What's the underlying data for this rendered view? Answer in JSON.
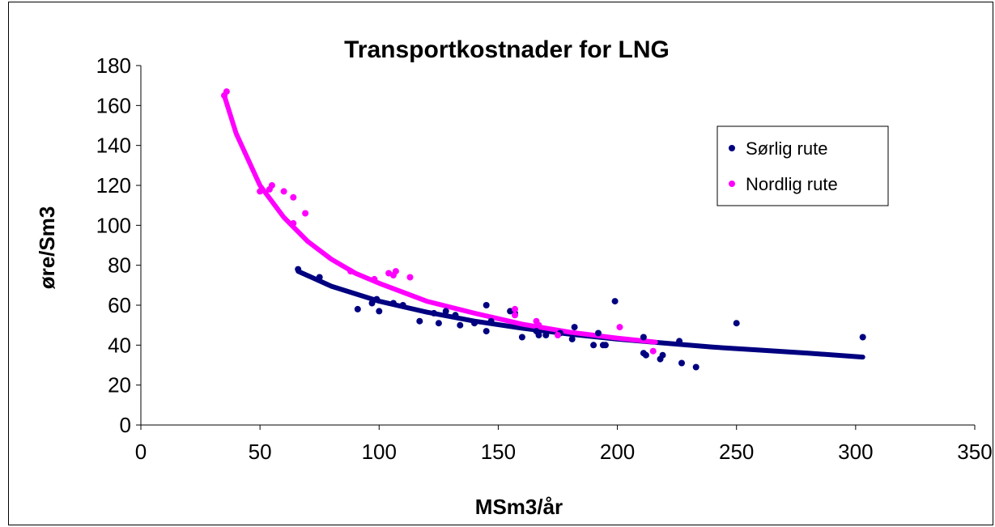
{
  "chart_data": {
    "type": "scatter",
    "title": "Transportkostnader for LNG",
    "xlabel": "MSm3/år",
    "ylabel": "øre/Sm3",
    "xlim": [
      0,
      350
    ],
    "ylim": [
      0,
      180
    ],
    "x_ticks": [
      "0",
      "50",
      "100",
      "150",
      "200",
      "250",
      "300",
      "350"
    ],
    "y_ticks": [
      "0",
      "20",
      "40",
      "60",
      "80",
      "100",
      "120",
      "140",
      "160",
      "180"
    ],
    "grid": false,
    "legend_position": "right",
    "series": [
      {
        "name": "Sørlig rute",
        "color": "#000080",
        "points": [
          [
            66,
            78
          ],
          [
            75,
            74
          ],
          [
            91,
            58
          ],
          [
            97,
            61
          ],
          [
            99,
            63
          ],
          [
            100,
            57
          ],
          [
            106,
            61
          ],
          [
            110,
            60
          ],
          [
            117,
            52
          ],
          [
            123,
            56
          ],
          [
            125,
            51
          ],
          [
            128,
            57
          ],
          [
            132,
            55
          ],
          [
            134,
            50
          ],
          [
            140,
            51
          ],
          [
            145,
            47
          ],
          [
            145,
            60
          ],
          [
            147,
            52
          ],
          [
            155,
            57
          ],
          [
            157,
            56
          ],
          [
            160,
            44
          ],
          [
            166,
            47
          ],
          [
            167,
            45
          ],
          [
            170,
            45
          ],
          [
            176,
            46
          ],
          [
            181,
            43
          ],
          [
            182,
            49
          ],
          [
            190,
            40
          ],
          [
            192,
            46
          ],
          [
            194,
            40
          ],
          [
            195,
            40
          ],
          [
            199,
            62
          ],
          [
            211,
            36
          ],
          [
            211,
            44
          ],
          [
            212,
            35
          ],
          [
            218,
            33
          ],
          [
            219,
            35
          ],
          [
            226,
            42
          ],
          [
            227,
            31
          ],
          [
            233,
            29
          ],
          [
            250,
            51
          ],
          [
            303,
            44
          ]
        ],
        "trend": [
          [
            66,
            77
          ],
          [
            80,
            69.5
          ],
          [
            100,
            62
          ],
          [
            120,
            56.5
          ],
          [
            140,
            52
          ],
          [
            160,
            48.5
          ],
          [
            180,
            45.5
          ],
          [
            200,
            43
          ],
          [
            220,
            41
          ],
          [
            240,
            39
          ],
          [
            260,
            37.5
          ],
          [
            280,
            36
          ],
          [
            303,
            34
          ]
        ]
      },
      {
        "name": "Nordlig rute",
        "color": "#ff00ff",
        "points": [
          [
            35,
            165
          ],
          [
            36,
            167
          ],
          [
            50,
            117
          ],
          [
            54,
            118
          ],
          [
            55,
            120
          ],
          [
            60,
            117
          ],
          [
            64,
            114
          ],
          [
            64,
            101
          ],
          [
            69,
            106
          ],
          [
            88,
            77
          ],
          [
            98,
            73
          ],
          [
            104,
            76
          ],
          [
            106,
            75
          ],
          [
            107,
            77
          ],
          [
            113,
            74
          ],
          [
            157,
            58
          ],
          [
            157,
            55
          ],
          [
            166,
            52
          ],
          [
            167,
            50
          ],
          [
            175,
            45
          ],
          [
            201,
            49
          ],
          [
            215,
            37
          ]
        ],
        "trend": [
          [
            35,
            165
          ],
          [
            40,
            146
          ],
          [
            50,
            120
          ],
          [
            60,
            104
          ],
          [
            70,
            92
          ],
          [
            80,
            83
          ],
          [
            90,
            76
          ],
          [
            100,
            71
          ],
          [
            120,
            62
          ],
          [
            140,
            56
          ],
          [
            160,
            50.5
          ],
          [
            180,
            46.5
          ],
          [
            200,
            43.5
          ],
          [
            216,
            41.5
          ]
        ]
      }
    ]
  }
}
